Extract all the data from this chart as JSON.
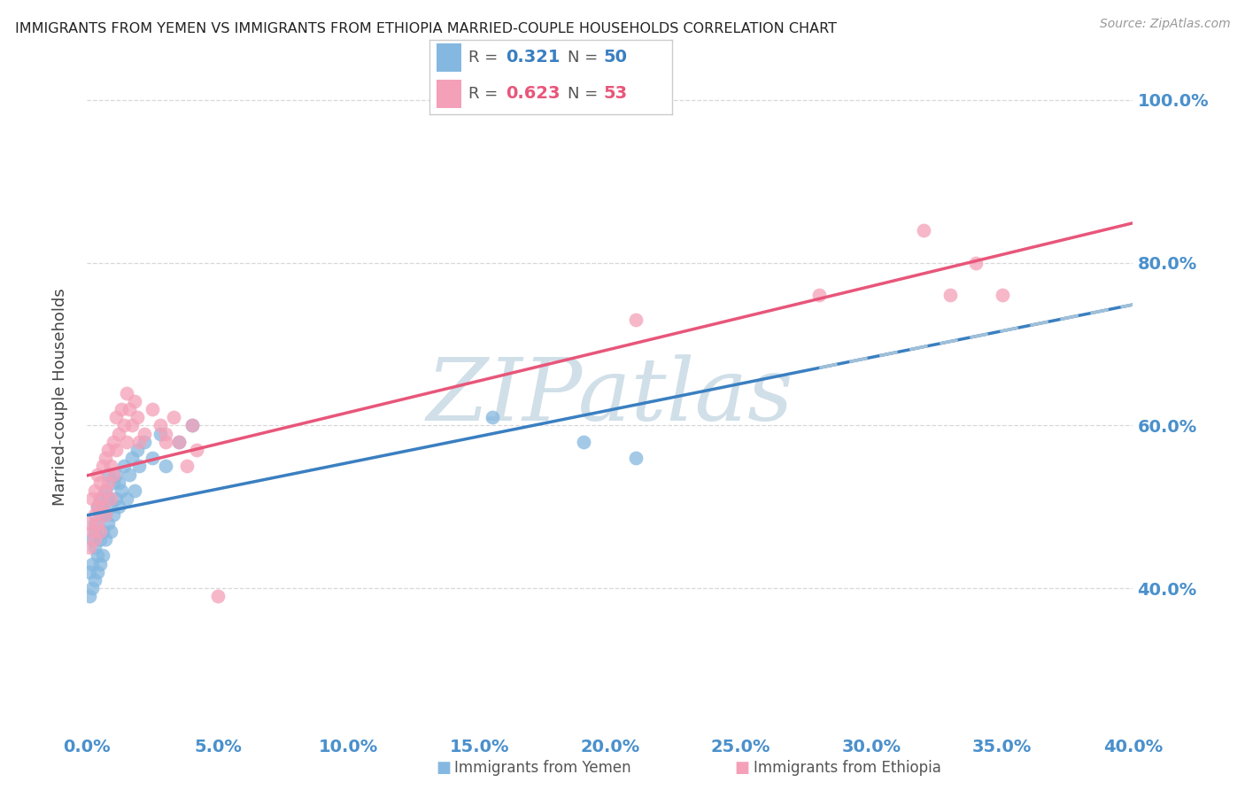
{
  "title": "IMMIGRANTS FROM YEMEN VS IMMIGRANTS FROM ETHIOPIA MARRIED-COUPLE HOUSEHOLDS CORRELATION CHART",
  "source": "Source: ZipAtlas.com",
  "xlabel_blue": "Immigrants from Yemen",
  "xlabel_pink": "Immigrants from Ethiopia",
  "ylabel": "Married-couple Households",
  "xmin": 0.0,
  "xmax": 0.4,
  "ymin": 0.22,
  "ymax": 1.05,
  "yticks": [
    0.4,
    0.6,
    0.8,
    1.0
  ],
  "xtick_vals": [
    0.0,
    0.05,
    0.1,
    0.15,
    0.2,
    0.25,
    0.3,
    0.35,
    0.4
  ],
  "xtick_labels": [
    "0.0%",
    "5.0%",
    "10.0%",
    "15.0%",
    "20.0%",
    "25.0%",
    "30.0%",
    "35.0%",
    "40.0%"
  ],
  "ytick_labels": [
    "40.0%",
    "60.0%",
    "80.0%",
    "100.0%"
  ],
  "r_blue": 0.321,
  "n_blue": 50,
  "r_pink": 0.623,
  "n_pink": 53,
  "blue_color": "#85b8e0",
  "pink_color": "#f4a0b8",
  "blue_line_color": "#3a7fc1",
  "pink_line_color": "#e8567a",
  "dashed_line_color": "#a0c0d8",
  "watermark": "ZIPatlas",
  "watermark_color": "#d0dfe8",
  "background_color": "#ffffff",
  "grid_color": "#d8d8d8",
  "axis_label_color": "#4a90cc",
  "title_color": "#222222",
  "blue_x": [
    0.001,
    0.001,
    0.002,
    0.002,
    0.002,
    0.003,
    0.003,
    0.003,
    0.003,
    0.004,
    0.004,
    0.004,
    0.005,
    0.005,
    0.005,
    0.005,
    0.006,
    0.006,
    0.006,
    0.007,
    0.007,
    0.007,
    0.008,
    0.008,
    0.008,
    0.009,
    0.009,
    0.01,
    0.01,
    0.011,
    0.011,
    0.012,
    0.012,
    0.013,
    0.014,
    0.015,
    0.016,
    0.017,
    0.018,
    0.019,
    0.02,
    0.022,
    0.025,
    0.028,
    0.03,
    0.035,
    0.04,
    0.155,
    0.19,
    0.21
  ],
  "blue_y": [
    0.42,
    0.39,
    0.46,
    0.43,
    0.4,
    0.48,
    0.45,
    0.41,
    0.47,
    0.44,
    0.5,
    0.42,
    0.49,
    0.46,
    0.43,
    0.51,
    0.47,
    0.5,
    0.44,
    0.49,
    0.46,
    0.52,
    0.48,
    0.51,
    0.54,
    0.5,
    0.47,
    0.53,
    0.49,
    0.51,
    0.54,
    0.5,
    0.53,
    0.52,
    0.55,
    0.51,
    0.54,
    0.56,
    0.52,
    0.57,
    0.55,
    0.58,
    0.56,
    0.59,
    0.55,
    0.58,
    0.6,
    0.61,
    0.58,
    0.56
  ],
  "pink_x": [
    0.001,
    0.001,
    0.002,
    0.002,
    0.003,
    0.003,
    0.003,
    0.004,
    0.004,
    0.004,
    0.005,
    0.005,
    0.005,
    0.006,
    0.006,
    0.007,
    0.007,
    0.007,
    0.008,
    0.008,
    0.009,
    0.009,
    0.01,
    0.01,
    0.011,
    0.011,
    0.012,
    0.013,
    0.014,
    0.015,
    0.015,
    0.016,
    0.017,
    0.018,
    0.019,
    0.02,
    0.022,
    0.025,
    0.028,
    0.03,
    0.03,
    0.033,
    0.035,
    0.038,
    0.04,
    0.042,
    0.05,
    0.21,
    0.28,
    0.32,
    0.33,
    0.34,
    0.35
  ],
  "pink_y": [
    0.45,
    0.48,
    0.51,
    0.47,
    0.49,
    0.46,
    0.52,
    0.5,
    0.54,
    0.48,
    0.51,
    0.47,
    0.53,
    0.5,
    0.55,
    0.52,
    0.49,
    0.56,
    0.53,
    0.57,
    0.55,
    0.51,
    0.58,
    0.54,
    0.57,
    0.61,
    0.59,
    0.62,
    0.6,
    0.64,
    0.58,
    0.62,
    0.6,
    0.63,
    0.61,
    0.58,
    0.59,
    0.62,
    0.6,
    0.58,
    0.59,
    0.61,
    0.58,
    0.55,
    0.6,
    0.57,
    0.39,
    0.73,
    0.76,
    0.84,
    0.76,
    0.8,
    0.76
  ]
}
